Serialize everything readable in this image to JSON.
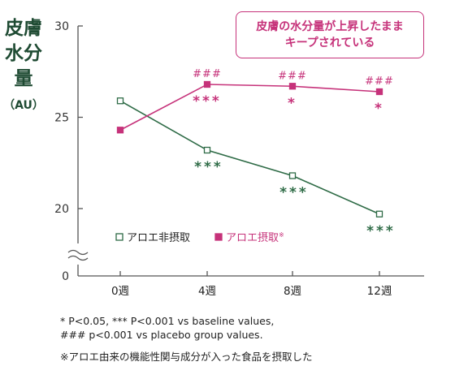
{
  "chart_data": {
    "type": "line",
    "ylabel": "皮膚水分量",
    "yunit": "（AU）",
    "categories": [
      "0週",
      "4週",
      "8週",
      "12週"
    ],
    "yticks": [
      0,
      20,
      25,
      30
    ],
    "ylim": [
      20,
      30
    ],
    "axis_break": true,
    "series": [
      {
        "name": "アロエ非摂取",
        "color": "#2e6b46",
        "marker": "open-square",
        "values": [
          25.9,
          23.2,
          21.8,
          19.7
        ],
        "annotations": [
          "",
          "***",
          "***",
          "***"
        ]
      },
      {
        "name": "アロエ摂取※",
        "color": "#c6327a",
        "marker": "filled-square",
        "values": [
          24.3,
          26.8,
          26.7,
          26.4
        ],
        "annotations_above": [
          "",
          "###",
          "###",
          "###"
        ],
        "annotations_below": [
          "",
          "***",
          "*",
          "*"
        ]
      }
    ],
    "callout": [
      "皮膚の水分量が上昇したまま",
      "キープされている"
    ],
    "legend_position": "lower-left"
  },
  "footnotes": [
    "* P<0.05, *** P<0.001 vs baseline values,",
    "### p<0.001 vs placebo group values.",
    "※アロエ由来の機能性関与成分が入った食品を摂取した"
  ]
}
